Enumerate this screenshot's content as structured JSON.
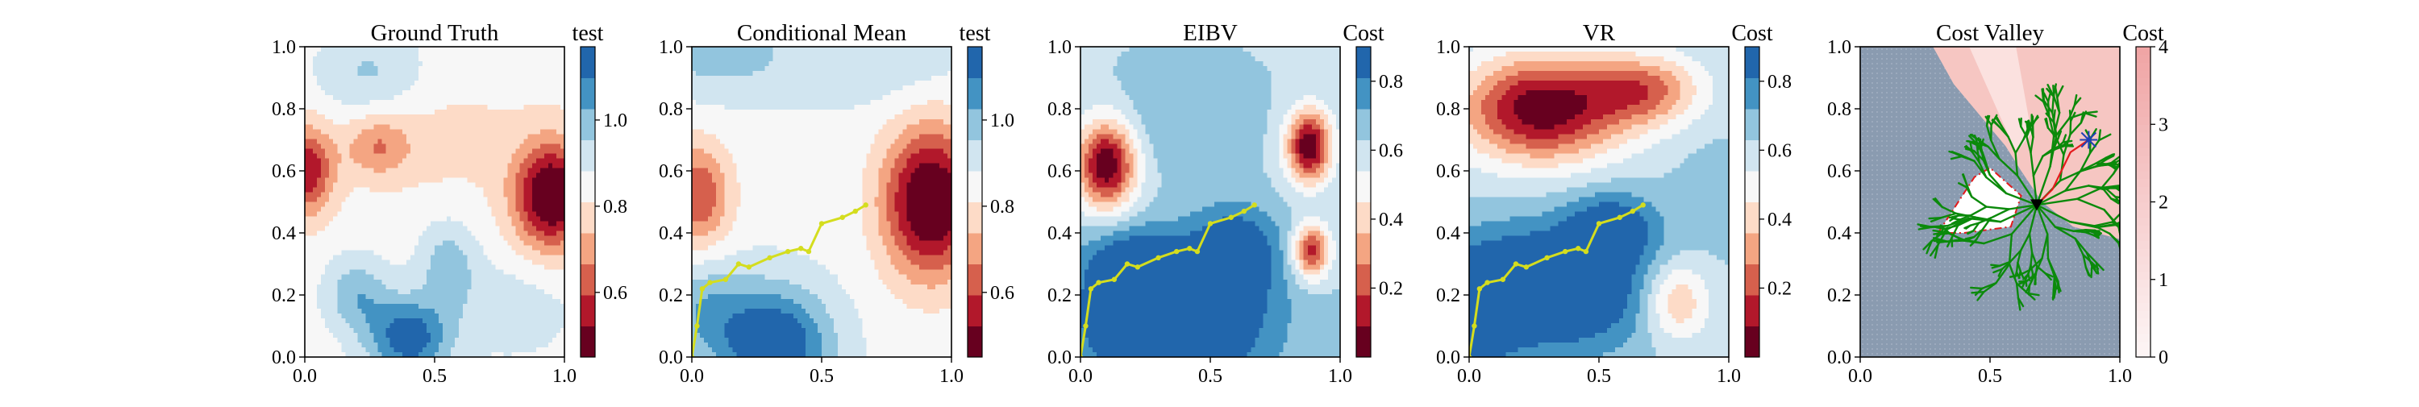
{
  "chart_data": [
    {
      "type": "heatmap",
      "title": "Ground Truth",
      "colorbar_label": "test",
      "colormap": "RdBu",
      "levels": [
        0.45,
        0.55,
        0.62,
        0.69,
        0.76,
        0.83,
        0.9,
        0.97,
        1.04,
        1.11,
        1.17
      ],
      "colorbar_ticks": [
        "0.6",
        "0.8",
        "1.0"
      ],
      "colorbar_tick_values": [
        0.6,
        0.8,
        1.0
      ],
      "x_ticks": [
        "0.0",
        "0.5",
        "1.0"
      ],
      "y_ticks": [
        "0.0",
        "0.2",
        "0.4",
        "0.6",
        "0.8",
        "1.0"
      ],
      "xlim": [
        0,
        1
      ],
      "ylim": [
        0,
        1
      ],
      "path": [],
      "field": {
        "base": 0.86,
        "bumps": [
          {
            "x": 0.95,
            "y": 0.52,
            "sx": 0.1,
            "sy": 0.12,
            "a": -0.42
          },
          {
            "x": 0.01,
            "y": 0.6,
            "sx": 0.07,
            "sy": 0.1,
            "a": -0.3
          },
          {
            "x": 0.28,
            "y": 0.68,
            "sx": 0.09,
            "sy": 0.07,
            "a": -0.16
          },
          {
            "x": 0.4,
            "y": 0.06,
            "sx": 0.11,
            "sy": 0.09,
            "a": 0.3
          },
          {
            "x": 0.2,
            "y": 0.2,
            "sx": 0.09,
            "sy": 0.09,
            "a": 0.16
          },
          {
            "x": 0.55,
            "y": 0.3,
            "sx": 0.08,
            "sy": 0.1,
            "a": 0.14
          },
          {
            "x": 0.25,
            "y": 0.92,
            "sx": 0.15,
            "sy": 0.1,
            "a": 0.12
          },
          {
            "x": 0.55,
            "y": 0.7,
            "sx": 0.22,
            "sy": 0.14,
            "a": -0.05
          },
          {
            "x": 0.8,
            "y": 0.15,
            "sx": 0.18,
            "sy": 0.12,
            "a": 0.08
          }
        ]
      }
    },
    {
      "type": "heatmap",
      "title": "Conditional Mean",
      "colorbar_label": "test",
      "colormap": "RdBu",
      "levels": [
        0.45,
        0.55,
        0.62,
        0.69,
        0.76,
        0.83,
        0.9,
        0.97,
        1.04,
        1.11,
        1.17
      ],
      "colorbar_ticks": [
        "0.6",
        "0.8",
        "1.0"
      ],
      "colorbar_tick_values": [
        0.6,
        0.8,
        1.0
      ],
      "x_ticks": [
        "0.0",
        "0.5",
        "1.0"
      ],
      "y_ticks": [
        "0.0",
        "0.2",
        "0.4",
        "0.6",
        "0.8",
        "1.0"
      ],
      "xlim": [
        0,
        1
      ],
      "ylim": [
        0,
        1
      ],
      "path": [
        [
          0.0,
          0.0
        ],
        [
          0.02,
          0.1
        ],
        [
          0.04,
          0.22
        ],
        [
          0.07,
          0.24
        ],
        [
          0.13,
          0.25
        ],
        [
          0.18,
          0.3
        ],
        [
          0.22,
          0.29
        ],
        [
          0.3,
          0.32
        ],
        [
          0.37,
          0.34
        ],
        [
          0.42,
          0.35
        ],
        [
          0.45,
          0.34
        ],
        [
          0.5,
          0.43
        ],
        [
          0.58,
          0.45
        ],
        [
          0.63,
          0.47
        ],
        [
          0.67,
          0.49
        ]
      ],
      "field": {
        "base": 0.88,
        "bumps": [
          {
            "x": 0.92,
            "y": 0.5,
            "sx": 0.13,
            "sy": 0.17,
            "a": -0.44
          },
          {
            "x": 0.02,
            "y": 0.52,
            "sx": 0.09,
            "sy": 0.12,
            "a": -0.26
          },
          {
            "x": 0.32,
            "y": 0.04,
            "sx": 0.15,
            "sy": 0.13,
            "a": 0.32
          },
          {
            "x": 0.05,
            "y": 0.15,
            "sx": 0.12,
            "sy": 0.12,
            "a": 0.14
          },
          {
            "x": 0.1,
            "y": 0.98,
            "sx": 0.2,
            "sy": 0.1,
            "a": 0.12
          },
          {
            "x": 0.7,
            "y": 0.95,
            "sx": 0.25,
            "sy": 0.1,
            "a": 0.08
          }
        ]
      }
    },
    {
      "type": "heatmap",
      "title": "EIBV",
      "colorbar_label": "Cost",
      "colormap": "RdBu",
      "levels": [
        0.0,
        0.09,
        0.18,
        0.27,
        0.36,
        0.45,
        0.54,
        0.63,
        0.72,
        0.81,
        0.9
      ],
      "colorbar_ticks": [
        "0.2",
        "0.4",
        "0.6",
        "0.8"
      ],
      "colorbar_tick_values": [
        0.2,
        0.4,
        0.6,
        0.8
      ],
      "x_ticks": [
        "0.0",
        "0.5",
        "1.0"
      ],
      "y_ticks": [
        "0.0",
        "0.2",
        "0.4",
        "0.6",
        "0.8",
        "1.0"
      ],
      "xlim": [
        0,
        1
      ],
      "ylim": [
        0,
        1
      ],
      "path": [
        [
          0.0,
          0.0
        ],
        [
          0.02,
          0.1
        ],
        [
          0.04,
          0.22
        ],
        [
          0.07,
          0.24
        ],
        [
          0.13,
          0.25
        ],
        [
          0.18,
          0.3
        ],
        [
          0.22,
          0.29
        ],
        [
          0.3,
          0.32
        ],
        [
          0.37,
          0.34
        ],
        [
          0.42,
          0.35
        ],
        [
          0.45,
          0.34
        ],
        [
          0.5,
          0.43
        ],
        [
          0.58,
          0.45
        ],
        [
          0.63,
          0.47
        ],
        [
          0.67,
          0.49
        ]
      ],
      "field": {
        "base": 0.62,
        "bumps": [
          {
            "x": 0.35,
            "y": 0.12,
            "sx": 0.26,
            "sy": 0.16,
            "a": 0.45
          },
          {
            "x": 0.6,
            "y": 0.35,
            "sx": 0.12,
            "sy": 0.1,
            "a": 0.25
          },
          {
            "x": 0.2,
            "y": 0.3,
            "sx": 0.12,
            "sy": 0.08,
            "a": 0.2
          },
          {
            "x": 0.1,
            "y": 0.62,
            "sx": 0.08,
            "sy": 0.1,
            "a": -0.62
          },
          {
            "x": 0.88,
            "y": 0.68,
            "sx": 0.06,
            "sy": 0.08,
            "a": -0.62
          },
          {
            "x": 0.89,
            "y": 0.34,
            "sx": 0.05,
            "sy": 0.06,
            "a": -0.5
          },
          {
            "x": 0.4,
            "y": 0.78,
            "sx": 0.18,
            "sy": 0.12,
            "a": 0.1
          }
        ]
      }
    },
    {
      "type": "heatmap",
      "title": "VR",
      "colorbar_label": "Cost",
      "colormap": "RdBu",
      "levels": [
        0.0,
        0.09,
        0.18,
        0.27,
        0.36,
        0.45,
        0.54,
        0.63,
        0.72,
        0.81,
        0.9
      ],
      "colorbar_ticks": [
        "0.2",
        "0.4",
        "0.6",
        "0.8"
      ],
      "colorbar_tick_values": [
        0.2,
        0.4,
        0.6,
        0.8
      ],
      "x_ticks": [
        "0.0",
        "0.5",
        "1.0"
      ],
      "y_ticks": [
        "0.0",
        "0.2",
        "0.4",
        "0.6",
        "0.8",
        "1.0"
      ],
      "xlim": [
        0,
        1
      ],
      "ylim": [
        0,
        1
      ],
      "path": [
        [
          0.0,
          0.0
        ],
        [
          0.02,
          0.1
        ],
        [
          0.04,
          0.22
        ],
        [
          0.07,
          0.24
        ],
        [
          0.13,
          0.25
        ],
        [
          0.18,
          0.3
        ],
        [
          0.22,
          0.29
        ],
        [
          0.3,
          0.32
        ],
        [
          0.37,
          0.34
        ],
        [
          0.42,
          0.35
        ],
        [
          0.45,
          0.34
        ],
        [
          0.5,
          0.43
        ],
        [
          0.58,
          0.45
        ],
        [
          0.63,
          0.47
        ],
        [
          0.67,
          0.49
        ]
      ],
      "field": {
        "base": 0.62,
        "bumps": [
          {
            "x": 0.3,
            "y": 0.22,
            "sx": 0.28,
            "sy": 0.14,
            "a": 0.42
          },
          {
            "x": 0.55,
            "y": 0.42,
            "sx": 0.12,
            "sy": 0.08,
            "a": 0.25
          },
          {
            "x": 0.02,
            "y": 0.1,
            "sx": 0.1,
            "sy": 0.14,
            "a": 0.2
          },
          {
            "x": 0.28,
            "y": 0.8,
            "sx": 0.22,
            "sy": 0.12,
            "a": -0.6
          },
          {
            "x": 0.68,
            "y": 0.86,
            "sx": 0.15,
            "sy": 0.08,
            "a": -0.35
          },
          {
            "x": 0.8,
            "y": 0.18,
            "sx": 0.09,
            "sy": 0.09,
            "a": -0.3
          },
          {
            "x": 0.95,
            "y": 0.55,
            "sx": 0.12,
            "sy": 0.12,
            "a": 0.05
          }
        ]
      }
    },
    {
      "type": "heatmap",
      "title": "Cost Valley",
      "colorbar_label": "Cost",
      "colormap": "Reds",
      "colorbar_ticks": [
        "0",
        "1",
        "2",
        "3",
        "4"
      ],
      "colorbar_tick_values": [
        0,
        1,
        2,
        3,
        4
      ],
      "clim": [
        0,
        4
      ],
      "x_ticks": [
        "0.0",
        "0.5",
        "1.0"
      ],
      "y_ticks": [
        "0.0",
        "0.2",
        "0.4",
        "0.6",
        "0.8",
        "1.0"
      ],
      "xlim": [
        0,
        1
      ],
      "ylim": [
        0,
        1
      ],
      "region_boundary": [
        [
          0.0,
          1.0
        ],
        [
          0.28,
          1.0
        ],
        [
          0.36,
          0.88
        ],
        [
          0.56,
          0.68
        ],
        [
          0.62,
          0.6
        ],
        [
          0.7,
          0.5
        ],
        [
          0.82,
          0.42
        ],
        [
          1.0,
          0.38
        ],
        [
          1.0,
          1.0
        ]
      ],
      "obstacle": [
        [
          0.3,
          0.4
        ],
        [
          0.44,
          0.58
        ],
        [
          0.5,
          0.61
        ],
        [
          0.62,
          0.52
        ],
        [
          0.58,
          0.42
        ],
        [
          0.4,
          0.4
        ]
      ],
      "start": [
        0.68,
        0.49
      ],
      "goal": [
        0.88,
        0.7
      ],
      "planned_path": [
        [
          0.68,
          0.49
        ],
        [
          0.74,
          0.54
        ],
        [
          0.81,
          0.66
        ],
        [
          0.88,
          0.7
        ]
      ]
    }
  ]
}
